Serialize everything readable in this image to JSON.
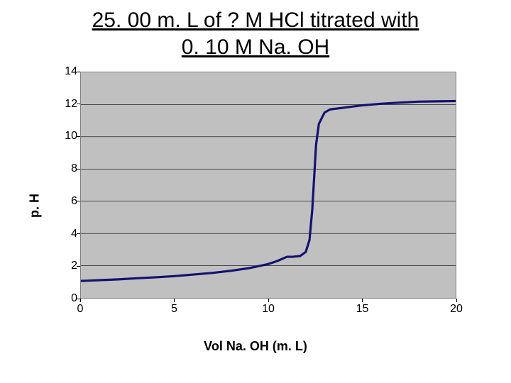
{
  "title_line1": "25. 00 m. L of ? M HCl titrated with",
  "title_line2": "0. 10 M Na. OH",
  "chart": {
    "type": "line",
    "xlabel": "Vol Na. OH (m. L)",
    "ylabel": "p. H",
    "xlim": [
      0,
      20
    ],
    "ylim": [
      0,
      14
    ],
    "xticks": [
      0,
      5,
      10,
      15,
      20
    ],
    "yticks": [
      0,
      2,
      4,
      6,
      8,
      10,
      12,
      14
    ],
    "xtick_step": 5,
    "ytick_step": 2,
    "plot_background": "#c0c0c0",
    "grid_color": "#000000",
    "grid_width": 0.6,
    "axis_color": "#7f7f7f",
    "line_color": "#16116f",
    "line_width": 3.2,
    "label_fontsize": 18,
    "tick_fontsize": 16,
    "series": [
      {
        "x": 0.0,
        "y": 1.05
      },
      {
        "x": 1.0,
        "y": 1.1
      },
      {
        "x": 2.0,
        "y": 1.15
      },
      {
        "x": 3.0,
        "y": 1.22
      },
      {
        "x": 4.0,
        "y": 1.28
      },
      {
        "x": 5.0,
        "y": 1.35
      },
      {
        "x": 6.0,
        "y": 1.45
      },
      {
        "x": 7.0,
        "y": 1.55
      },
      {
        "x": 8.0,
        "y": 1.68
      },
      {
        "x": 9.0,
        "y": 1.85
      },
      {
        "x": 10.0,
        "y": 2.1
      },
      {
        "x": 10.5,
        "y": 2.3
      },
      {
        "x": 11.0,
        "y": 2.55
      },
      {
        "x": 11.3,
        "y": 2.55
      },
      {
        "x": 11.7,
        "y": 2.6
      },
      {
        "x": 12.0,
        "y": 2.85
      },
      {
        "x": 12.2,
        "y": 3.6
      },
      {
        "x": 12.35,
        "y": 5.5
      },
      {
        "x": 12.45,
        "y": 7.5
      },
      {
        "x": 12.55,
        "y": 9.5
      },
      {
        "x": 12.7,
        "y": 10.8
      },
      {
        "x": 13.0,
        "y": 11.5
      },
      {
        "x": 13.3,
        "y": 11.7
      },
      {
        "x": 14.0,
        "y": 11.8
      },
      {
        "x": 15.0,
        "y": 11.95
      },
      {
        "x": 16.0,
        "y": 12.05
      },
      {
        "x": 17.0,
        "y": 12.12
      },
      {
        "x": 18.0,
        "y": 12.18
      },
      {
        "x": 19.0,
        "y": 12.2
      },
      {
        "x": 20.0,
        "y": 12.22
      }
    ]
  }
}
